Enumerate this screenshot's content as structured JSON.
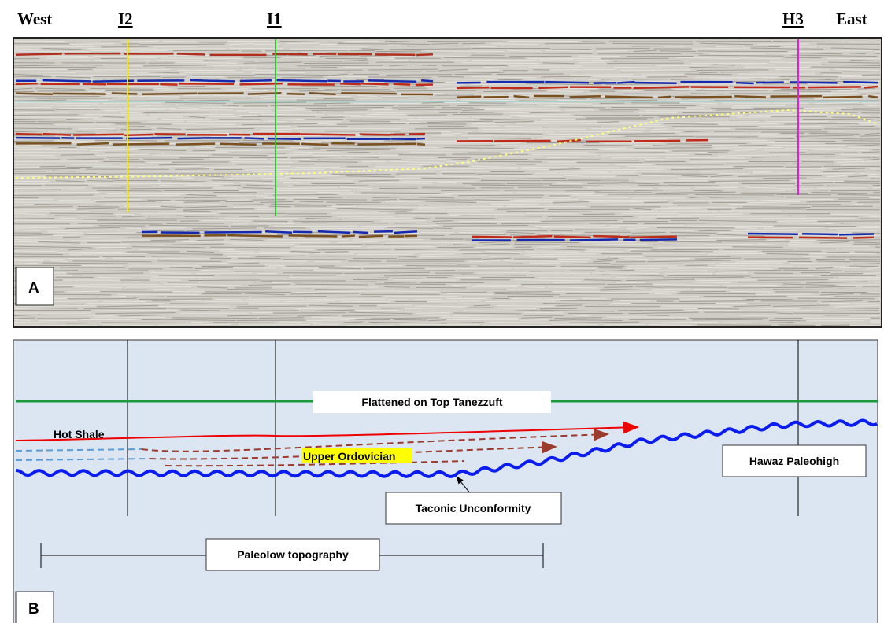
{
  "header": {
    "west": "West",
    "east": "East",
    "wells": [
      "I2",
      "I1",
      "H3"
    ]
  },
  "panel_a": {
    "label": "A"
  },
  "panel_b": {
    "label": "B",
    "flattened": "Flattened on Top Tanezzuft",
    "hot_shale": "Hot Shale",
    "upper_ordovician": "Upper Ordovician",
    "paleohigh": "Hawaz Paleohigh",
    "unconformity": "Taconic Unconformity",
    "paleolow": "Paleolow topography"
  }
}
